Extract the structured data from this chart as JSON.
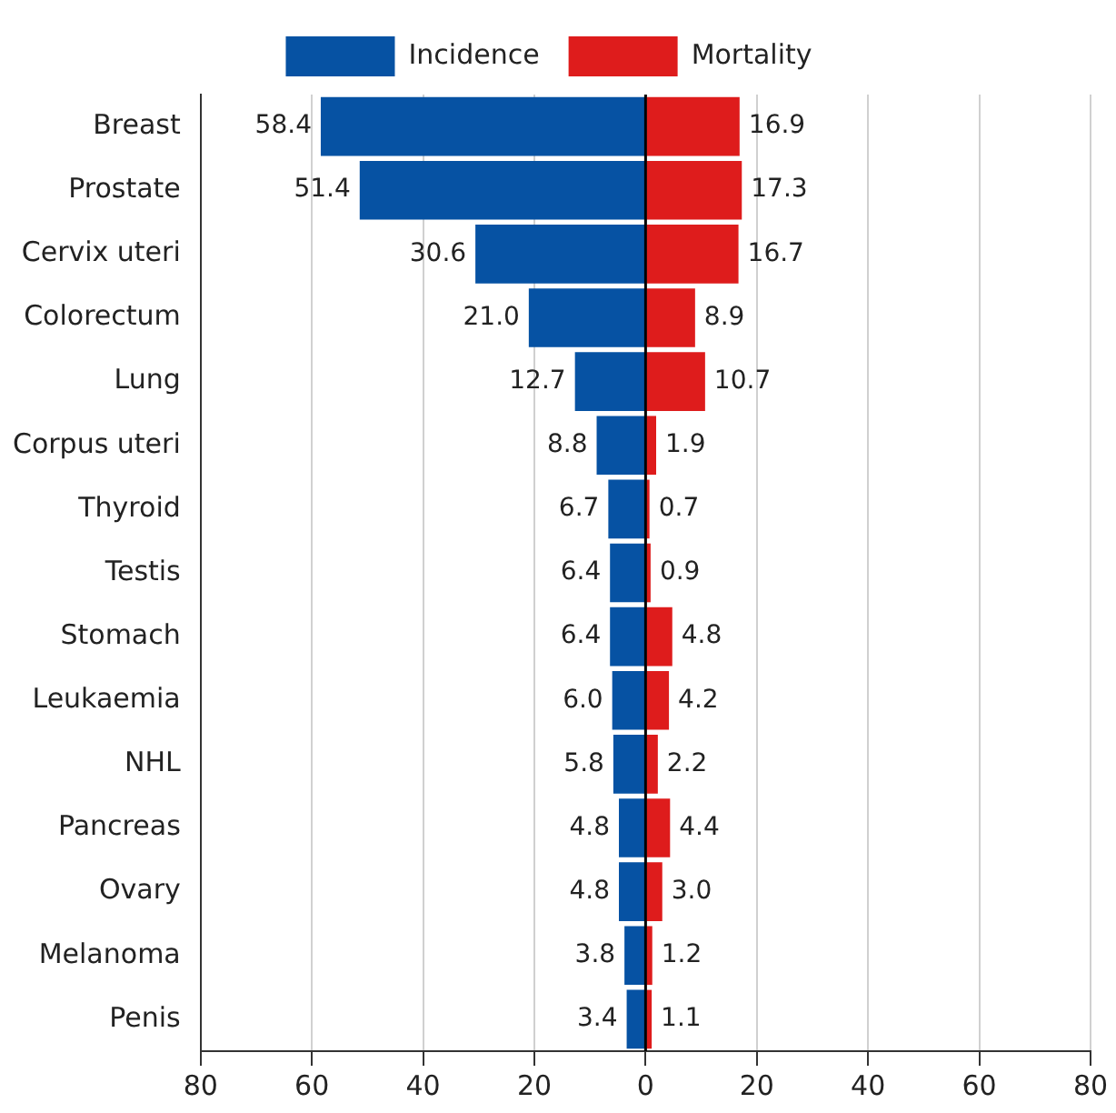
{
  "chart_data": {
    "type": "bar",
    "orientation": "horizontal",
    "categories": [
      "Breast",
      "Prostate",
      "Cervix uteri",
      "Colorectum",
      "Lung",
      "Corpus uteri",
      "Thyroid",
      "Testis",
      "Stomach",
      "Leukaemia",
      "NHL",
      "Pancreas",
      "Ovary",
      "Melanoma",
      "Penis"
    ],
    "series": [
      {
        "name": "Incidence",
        "color": "#0652a3",
        "values": [
          58.4,
          51.4,
          30.6,
          21.0,
          12.7,
          8.8,
          6.7,
          6.4,
          6.4,
          6.0,
          5.8,
          4.8,
          4.8,
          3.8,
          3.4
        ],
        "base": [
          -58.4,
          -51.4,
          -30.6,
          -21.0,
          -12.7,
          -8.8,
          -6.7,
          -6.4,
          -6.4,
          -6.0,
          -5.8,
          -4.8,
          -4.8,
          -3.8,
          -3.4
        ],
        "value_labels": [
          "58.4",
          "51.4",
          "30.6",
          "21.0",
          "12.7",
          "8.8",
          "6.7",
          "6.4",
          "6.4",
          "6.0",
          "5.8",
          "4.8",
          "4.8",
          "3.8",
          "3.4"
        ]
      },
      {
        "name": "Mortality",
        "color": "#de1c1c",
        "values": [
          16.9,
          17.3,
          16.7,
          8.9,
          10.7,
          1.9,
          0.7,
          0.9,
          4.8,
          4.2,
          2.2,
          4.4,
          3.0,
          1.2,
          1.1
        ],
        "value_labels": [
          "16.9",
          "17.3",
          "16.7",
          "8.9",
          "10.7",
          "1.9",
          "0.7",
          "0.9",
          "4.8",
          "4.2",
          "2.2",
          "4.4",
          "3.0",
          "1.2",
          "1.1"
        ]
      }
    ],
    "xlim": [
      -80,
      80
    ],
    "xticks": [
      {
        "value": -80,
        "label": "80"
      },
      {
        "value": -60,
        "label": "60"
      },
      {
        "value": -40,
        "label": "40"
      },
      {
        "value": -20,
        "label": "20"
      },
      0,
      20,
      40,
      60,
      80
    ],
    "ref_lines": [
      {
        "axis": "x",
        "value": 0,
        "color": "#000000"
      }
    ],
    "grid": "x",
    "legend": "top"
  }
}
